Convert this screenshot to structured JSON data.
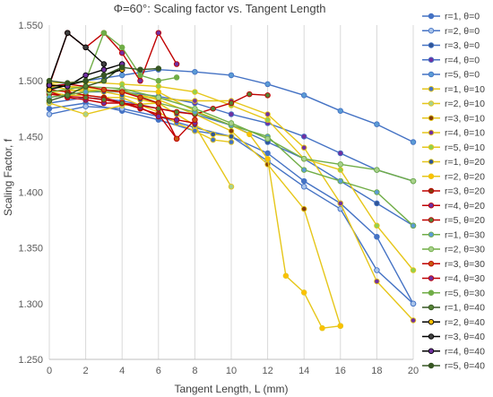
{
  "chart_data": {
    "type": "line",
    "title": "Φ=60°: Scaling factor vs. Tangent Length",
    "xlabel": "Tangent Length, L (mm)",
    "ylabel": "Scaling Factor, f",
    "xlim": [
      0,
      20
    ],
    "ylim": [
      1.25,
      1.55
    ],
    "xticks": [
      0,
      2,
      4,
      6,
      8,
      10,
      12,
      14,
      16,
      18,
      20
    ],
    "yticks": [
      1.25,
      1.3,
      1.35,
      1.4,
      1.45,
      1.5,
      1.55
    ],
    "ytick_labels": [
      "1.250",
      "1.300",
      "1.350",
      "1.400",
      "1.450",
      "1.500",
      "1.550"
    ],
    "grid": "vertical",
    "legend_position": "right",
    "series": [
      {
        "name": "r=1, θ=0",
        "line": "#4472c4",
        "marker": "#4472c4",
        "x": [
          0,
          2,
          4,
          6,
          8,
          10,
          12,
          14,
          16,
          18,
          20
        ],
        "y": [
          1.475,
          1.48,
          1.473,
          1.465,
          1.455,
          1.45,
          1.435,
          1.41,
          1.39,
          1.36,
          1.3
        ]
      },
      {
        "name": "r=2, θ=0",
        "line": "#4472c4",
        "marker": "#a9c4eb",
        "x": [
          0,
          2,
          4,
          6,
          8,
          10,
          12,
          14,
          16,
          18,
          20
        ],
        "y": [
          1.47,
          1.477,
          1.475,
          1.468,
          1.458,
          1.45,
          1.428,
          1.405,
          1.385,
          1.33,
          1.3
        ]
      },
      {
        "name": "r=3, θ=0",
        "line": "#4472c4",
        "marker": "#2f5597",
        "x": [
          0,
          2,
          4,
          6,
          8,
          10,
          12,
          14,
          16,
          18,
          20
        ],
        "y": [
          1.48,
          1.485,
          1.482,
          1.475,
          1.47,
          1.46,
          1.445,
          1.43,
          1.41,
          1.39,
          1.37
        ]
      },
      {
        "name": "r=4, θ=0",
        "line": "#4472c4",
        "marker": "#7030a0",
        "x": [
          0,
          2,
          4,
          6,
          8,
          10,
          12,
          14,
          16,
          18,
          20
        ],
        "y": [
          1.485,
          1.49,
          1.49,
          1.486,
          1.48,
          1.47,
          1.462,
          1.45,
          1.435,
          1.42,
          1.41
        ]
      },
      {
        "name": "r=5, θ=0",
        "line": "#4472c4",
        "marker": "#5b9bd5",
        "x": [
          0,
          2,
          4,
          6,
          8,
          10,
          12,
          14,
          16,
          18,
          20
        ],
        "y": [
          1.495,
          1.5,
          1.505,
          1.51,
          1.508,
          1.505,
          1.497,
          1.487,
          1.473,
          1.461,
          1.445
        ]
      },
      {
        "name": "r=1, θ=10",
        "line": "#e6c619",
        "marker": "#4472c4",
        "x": [
          0,
          1,
          2,
          3,
          4,
          5,
          6,
          7,
          8,
          9,
          10
        ],
        "y": [
          1.49,
          1.487,
          1.487,
          1.485,
          1.485,
          1.478,
          1.472,
          1.462,
          1.455,
          1.447,
          1.445
        ]
      },
      {
        "name": "r=2, θ=10",
        "line": "#e6c619",
        "marker": "#a9d18e",
        "x": [
          0,
          2,
          4,
          6,
          8,
          10
        ],
        "y": [
          1.48,
          1.47,
          1.478,
          1.48,
          1.46,
          1.405
        ]
      },
      {
        "name": "r=3, θ=10",
        "line": "#e6c619",
        "marker": "#843c0c",
        "x": [
          0,
          2,
          4,
          6,
          8,
          10,
          12,
          14,
          16
        ],
        "y": [
          1.49,
          1.492,
          1.49,
          1.483,
          1.47,
          1.455,
          1.425,
          1.385,
          1.28
        ]
      },
      {
        "name": "r=4, θ=10",
        "line": "#e6c619",
        "marker": "#7030a0",
        "x": [
          0,
          2,
          4,
          6,
          8,
          10,
          12,
          14,
          16,
          18,
          20
        ],
        "y": [
          1.496,
          1.494,
          1.49,
          1.484,
          1.482,
          1.482,
          1.47,
          1.44,
          1.39,
          1.32,
          1.285
        ]
      },
      {
        "name": "r=5, θ=10",
        "line": "#e6c619",
        "marker": "#92d050",
        "x": [
          0,
          2,
          4,
          6,
          8,
          10,
          12,
          14,
          16,
          18,
          20
        ],
        "y": [
          1.498,
          1.499,
          1.497,
          1.495,
          1.49,
          1.478,
          1.465,
          1.43,
          1.42,
          1.37,
          1.33
        ]
      },
      {
        "name": "r=1, θ=20",
        "line": "#e6c619",
        "marker": "#2f5597",
        "x": [
          0,
          1,
          2,
          3,
          4,
          5,
          6,
          7,
          8,
          9,
          10
        ],
        "y": [
          1.497,
          1.495,
          1.492,
          1.49,
          1.487,
          1.483,
          1.48,
          1.47,
          1.46,
          1.452,
          1.45
        ]
      },
      {
        "name": "r=2, θ=20",
        "line": "#e6c619",
        "marker": "#ffc000",
        "x": [
          0,
          2,
          4,
          6,
          8,
          10,
          11,
          12,
          13,
          14,
          15,
          16
        ],
        "y": [
          1.495,
          1.49,
          1.492,
          1.49,
          1.473,
          1.46,
          1.452,
          1.43,
          1.325,
          1.31,
          1.278,
          1.28
        ]
      },
      {
        "name": "r=3, θ=20",
        "line": "#c00000",
        "marker": "#843c0c",
        "x": [
          0,
          1,
          2,
          3,
          4,
          5,
          6,
          7
        ],
        "y": [
          1.492,
          1.49,
          1.487,
          1.485,
          1.48,
          1.475,
          1.47,
          1.448
        ]
      },
      {
        "name": "r=4, θ=20",
        "line": "#c00000",
        "marker": "#7030a0",
        "x": [
          0,
          1,
          2,
          3,
          4,
          5,
          6,
          7,
          8
        ],
        "y": [
          1.49,
          1.485,
          1.483,
          1.48,
          1.48,
          1.476,
          1.468,
          1.465,
          1.462
        ]
      },
      {
        "name": "r=5, θ=20",
        "line": "#c00000",
        "marker": "#548235",
        "x": [
          0,
          1,
          2,
          3,
          4,
          5,
          6,
          7,
          8,
          9,
          10,
          11,
          12
        ],
        "y": [
          1.488,
          1.486,
          1.485,
          1.483,
          1.48,
          1.478,
          1.475,
          1.472,
          1.47,
          1.475,
          1.48,
          1.488,
          1.487
        ]
      },
      {
        "name": "r=1, θ=30",
        "line": "#70ad47",
        "marker": "#5b9bd5",
        "x": [
          0,
          2,
          4,
          6,
          8,
          10,
          12,
          14,
          16,
          18,
          20
        ],
        "y": [
          1.485,
          1.49,
          1.492,
          1.48,
          1.472,
          1.46,
          1.45,
          1.42,
          1.41,
          1.4,
          1.37
        ]
      },
      {
        "name": "r=2, θ=30",
        "line": "#70ad47",
        "marker": "#a9d18e",
        "x": [
          0,
          2,
          4,
          6,
          8,
          10,
          12,
          14,
          16,
          18,
          20
        ],
        "y": [
          1.49,
          1.495,
          1.493,
          1.485,
          1.475,
          1.462,
          1.448,
          1.43,
          1.425,
          1.42,
          1.41
        ]
      },
      {
        "name": "r=3, θ=30",
        "line": "#c00000",
        "marker": "#c55a11",
        "x": [
          0,
          1,
          2,
          3,
          4,
          5,
          6,
          7,
          8
        ],
        "y": [
          1.495,
          1.497,
          1.495,
          1.492,
          1.49,
          1.485,
          1.48,
          1.448,
          1.465
        ]
      },
      {
        "name": "r=4, θ=30",
        "line": "#c00000",
        "marker": "#7030a0",
        "x": [
          0,
          1,
          2,
          3,
          4,
          5,
          6,
          7
        ],
        "y": [
          1.496,
          1.543,
          1.53,
          1.543,
          1.525,
          1.5,
          1.543,
          1.515
        ]
      },
      {
        "name": "r=5, θ=30",
        "line": "#70ad47",
        "marker": "#70ad47",
        "x": [
          0,
          1,
          2,
          3,
          4,
          5,
          6,
          7
        ],
        "y": [
          1.493,
          1.496,
          1.5,
          1.543,
          1.53,
          1.505,
          1.5,
          1.503
        ]
      },
      {
        "name": "r=1, θ=40",
        "line": "#375623",
        "marker": "#548235",
        "x": [
          0,
          1,
          2,
          3,
          4
        ],
        "y": [
          1.482,
          1.487,
          1.495,
          1.5,
          1.513
        ]
      },
      {
        "name": "r=2, θ=40",
        "line": "#000000",
        "marker": "#ffc000",
        "x": [
          0,
          1,
          2,
          3,
          4
        ],
        "y": [
          1.492,
          1.496,
          1.5,
          1.505,
          1.51
        ]
      },
      {
        "name": "r=3, θ=40",
        "line": "#000000",
        "marker": "#404040",
        "x": [
          0,
          1,
          2,
          3
        ],
        "y": [
          1.497,
          1.543,
          1.53,
          1.515
        ]
      },
      {
        "name": "r=4, θ=40",
        "line": "#000000",
        "marker": "#7030a0",
        "x": [
          0,
          1,
          2,
          3,
          4
        ],
        "y": [
          1.496,
          1.495,
          1.505,
          1.51,
          1.515
        ]
      },
      {
        "name": "r=5, θ=40",
        "line": "#375623",
        "marker": "#375623",
        "x": [
          0,
          1,
          2,
          3,
          4,
          5,
          6
        ],
        "y": [
          1.5,
          1.498,
          1.5,
          1.505,
          1.512,
          1.51,
          1.511
        ]
      }
    ]
  }
}
